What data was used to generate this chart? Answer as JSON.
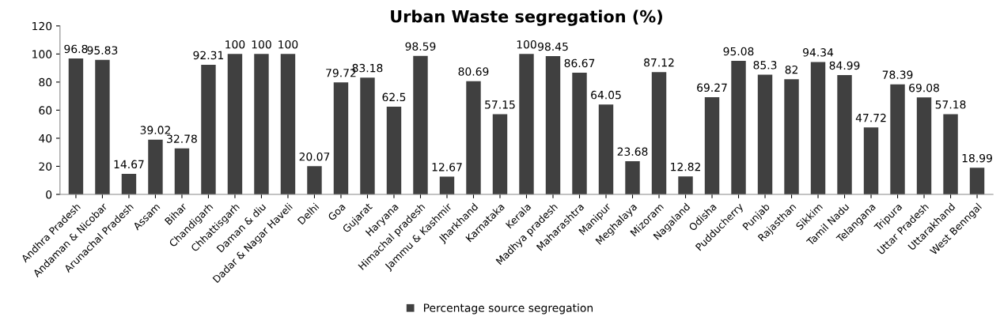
{
  "chart_data": {
    "type": "bar",
    "title": "Urban Waste segregation (%)",
    "categories": [
      "Andhra Pradesh",
      "Andaman & Nicobar",
      "Arunachal Pradesh",
      "Assam",
      "Bihar",
      "Chandigarh",
      "Chhattisgarh",
      "Daman & diu",
      "Dadar & Nagar Haveli",
      "Delhi",
      "Goa",
      "Gujarat",
      "Haryana",
      "Himachal pradesh",
      "Jammu & Kashmir",
      "Jharkhand",
      "Karnataka",
      "Kerala",
      "Madhya pradesh",
      "Maharashtra",
      "Manipur",
      "Meghalaya",
      "Mizoram",
      "Nagaland",
      "Odisha",
      "Pudducherry",
      "Punjab",
      "Rajasthan",
      "Sikkim",
      "Tamil Nadu",
      "Telangana",
      "Tripura",
      "Uttar Pradesh",
      "Uttarakhand",
      "West Benngal"
    ],
    "series": [
      {
        "name": "Percentage source segregation",
        "color": "#404040",
        "values": [
          96.8,
          95.83,
          14.67,
          39.02,
          32.78,
          92.31,
          100,
          100,
          100,
          20.07,
          79.72,
          83.18,
          62.5,
          98.59,
          12.67,
          80.69,
          57.15,
          100,
          98.45,
          86.67,
          64.05,
          23.68,
          87.12,
          12.82,
          69.27,
          95.08,
          85.3,
          82,
          94.34,
          84.99,
          47.72,
          78.39,
          69.08,
          57.18,
          18.99
        ]
      }
    ],
    "ylim": [
      0,
      120
    ],
    "yticks": [
      0,
      20,
      40,
      60,
      80,
      100,
      120
    ],
    "data_labels": true,
    "grid": false,
    "legend": "bottom"
  }
}
